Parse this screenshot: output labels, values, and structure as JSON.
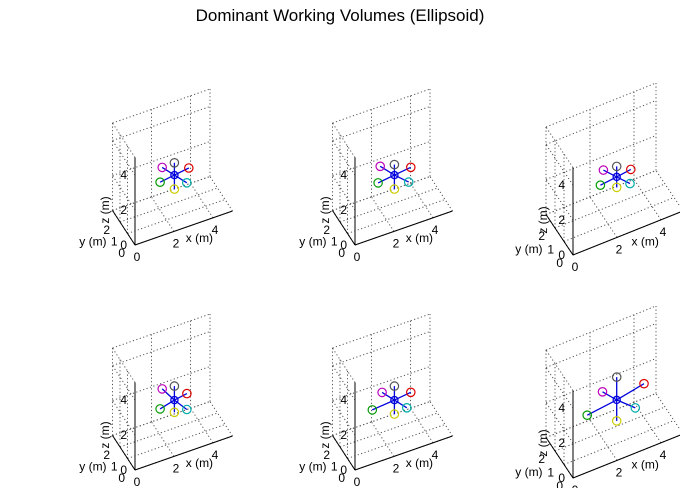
{
  "title": "Dominant Working Volumes (Ellipsoid)",
  "colors": {
    "axis_line": "#000000",
    "grid": "#555555",
    "vector": "#0000dd",
    "center_marker": "#0000dd",
    "endpoint_colors": [
      "#555555",
      "#dd0000",
      "#00aaaa",
      "#cccc00",
      "#009900",
      "#bb00bb"
    ]
  },
  "chart_data": [
    {
      "type": "scatter3d",
      "xlabel": "x (m)",
      "ylabel": "y (m)",
      "zlabel": "z (m)",
      "x_ticks": [
        "0",
        "2",
        "4"
      ],
      "y_ticks": [
        "0",
        "1",
        "2"
      ],
      "z_ticks": [
        "0",
        "2",
        "4"
      ],
      "xlim": [
        0,
        5
      ],
      "ylim": [
        0,
        3
      ],
      "zlim": [
        0,
        5
      ],
      "grid": true,
      "center": [
        2.6,
        1.5,
        2.0
      ],
      "endpoints": [
        {
          "color": "#555555",
          "point": [
            2.6,
            1.5,
            2.7
          ]
        },
        {
          "color": "#dd0000",
          "point": [
            3.3,
            1.4,
            2.2
          ]
        },
        {
          "color": "#00aaaa",
          "point": [
            3.0,
            0.9,
            1.8
          ]
        },
        {
          "color": "#cccc00",
          "point": [
            2.6,
            1.5,
            1.2
          ]
        },
        {
          "color": "#009900",
          "point": [
            1.9,
            1.6,
            1.8
          ]
        },
        {
          "color": "#bb00bb",
          "point": [
            2.2,
            2.1,
            2.2
          ]
        }
      ]
    },
    {
      "type": "scatter3d",
      "xlabel": "x (m)",
      "ylabel": "y (m)",
      "zlabel": "z (m)",
      "x_ticks": [
        "0",
        "2",
        "4"
      ],
      "y_ticks": [
        "0",
        "1",
        "2"
      ],
      "z_ticks": [
        "0",
        "2",
        "4"
      ],
      "xlim": [
        0,
        5
      ],
      "ylim": [
        0,
        3
      ],
      "zlim": [
        0,
        5
      ],
      "grid": true,
      "center": [
        2.6,
        1.5,
        2.0
      ],
      "endpoints": [
        {
          "color": "#555555",
          "point": [
            2.6,
            1.5,
            2.6
          ]
        },
        {
          "color": "#dd0000",
          "point": [
            3.4,
            1.4,
            2.2
          ]
        },
        {
          "color": "#00aaaa",
          "point": [
            3.1,
            0.9,
            1.8
          ]
        },
        {
          "color": "#cccc00",
          "point": [
            2.6,
            1.5,
            1.2
          ]
        },
        {
          "color": "#009900",
          "point": [
            1.8,
            1.6,
            1.8
          ]
        },
        {
          "color": "#bb00bb",
          "point": [
            2.1,
            2.1,
            2.3
          ]
        }
      ]
    },
    {
      "type": "scatter3d",
      "xlabel": "x (m)",
      "ylabel": "y (m)",
      "zlabel": "z (m)",
      "x_ticks": [
        "0",
        "2",
        "4"
      ],
      "y_ticks": [
        "0",
        "1",
        "2"
      ],
      "z_ticks": [
        "0",
        "2",
        "4"
      ],
      "xlim": [
        0,
        5
      ],
      "ylim": [
        0,
        3
      ],
      "zlim": [
        0,
        5
      ],
      "grid": true,
      "center": [
        2.6,
        1.5,
        2.0
      ],
      "endpoints": [
        {
          "color": "#555555",
          "point": [
            2.6,
            1.5,
            2.6
          ]
        },
        {
          "color": "#dd0000",
          "point": [
            3.2,
            1.4,
            2.2
          ]
        },
        {
          "color": "#00aaaa",
          "point": [
            3.0,
            1.0,
            1.8
          ]
        },
        {
          "color": "#cccc00",
          "point": [
            2.6,
            1.5,
            1.4
          ]
        },
        {
          "color": "#009900",
          "point": [
            1.9,
            1.6,
            1.8
          ]
        },
        {
          "color": "#bb00bb",
          "point": [
            2.2,
            2.0,
            2.2
          ]
        }
      ]
    },
    {
      "type": "scatter3d",
      "xlabel": "x (m)",
      "ylabel": "y (m)",
      "zlabel": "z (m)",
      "x_ticks": [
        "0",
        "2",
        "4"
      ],
      "y_ticks": [
        "0",
        "1",
        "2"
      ],
      "z_ticks": [
        "0",
        "2",
        "4"
      ],
      "xlim": [
        0,
        5
      ],
      "ylim": [
        0,
        3
      ],
      "zlim": [
        0,
        5
      ],
      "grid": true,
      "center": [
        2.6,
        1.5,
        2.0
      ],
      "endpoints": [
        {
          "color": "#555555",
          "point": [
            2.6,
            1.5,
            2.8
          ]
        },
        {
          "color": "#dd0000",
          "point": [
            3.2,
            1.4,
            2.2
          ]
        },
        {
          "color": "#00aaaa",
          "point": [
            3.0,
            0.9,
            1.7
          ]
        },
        {
          "color": "#cccc00",
          "point": [
            2.6,
            1.5,
            1.3
          ]
        },
        {
          "color": "#009900",
          "point": [
            1.9,
            1.6,
            1.7
          ]
        },
        {
          "color": "#bb00bb",
          "point": [
            2.2,
            2.1,
            2.4
          ]
        }
      ]
    },
    {
      "type": "scatter3d",
      "xlabel": "x (m)",
      "ylabel": "y (m)",
      "zlabel": "z (m)",
      "x_ticks": [
        "0",
        "2",
        "4"
      ],
      "y_ticks": [
        "0",
        "1",
        "2"
      ],
      "z_ticks": [
        "0",
        "2",
        "4"
      ],
      "xlim": [
        0,
        5
      ],
      "ylim": [
        0,
        3
      ],
      "zlim": [
        0,
        5
      ],
      "grid": true,
      "center": [
        2.6,
        1.5,
        2.0
      ],
      "endpoints": [
        {
          "color": "#555555",
          "point": [
            2.6,
            1.5,
            2.8
          ]
        },
        {
          "color": "#dd0000",
          "point": [
            3.4,
            1.4,
            2.2
          ]
        },
        {
          "color": "#00aaaa",
          "point": [
            3.0,
            0.9,
            1.8
          ]
        },
        {
          "color": "#cccc00",
          "point": [
            2.6,
            1.5,
            1.2
          ]
        },
        {
          "color": "#009900",
          "point": [
            1.5,
            1.6,
            1.8
          ]
        },
        {
          "color": "#bb00bb",
          "point": [
            2.2,
            2.1,
            2.2
          ]
        }
      ]
    },
    {
      "type": "scatter3d",
      "xlabel": "x (m)",
      "ylabel": "y (m)",
      "zlabel": "z (m)",
      "x_ticks": [
        "0",
        "2",
        "4"
      ],
      "y_ticks": [
        "0",
        "1",
        "2"
      ],
      "z_ticks": [
        "0",
        "2",
        "4"
      ],
      "xlim": [
        0,
        5
      ],
      "ylim": [
        0,
        3
      ],
      "zlim": [
        0,
        5
      ],
      "grid": true,
      "center": [
        2.6,
        1.5,
        2.0
      ],
      "endpoints": [
        {
          "color": "#555555",
          "point": [
            2.6,
            1.5,
            3.3
          ]
        },
        {
          "color": "#dd0000",
          "point": [
            3.8,
            1.4,
            2.4
          ]
        },
        {
          "color": "#00aaaa",
          "point": [
            3.2,
            0.9,
            1.7
          ]
        },
        {
          "color": "#cccc00",
          "point": [
            2.6,
            1.5,
            0.8
          ]
        },
        {
          "color": "#009900",
          "point": [
            1.3,
            1.6,
            1.7
          ]
        },
        {
          "color": "#bb00bb",
          "point": [
            2.2,
            2.1,
            2.2
          ]
        }
      ]
    }
  ]
}
